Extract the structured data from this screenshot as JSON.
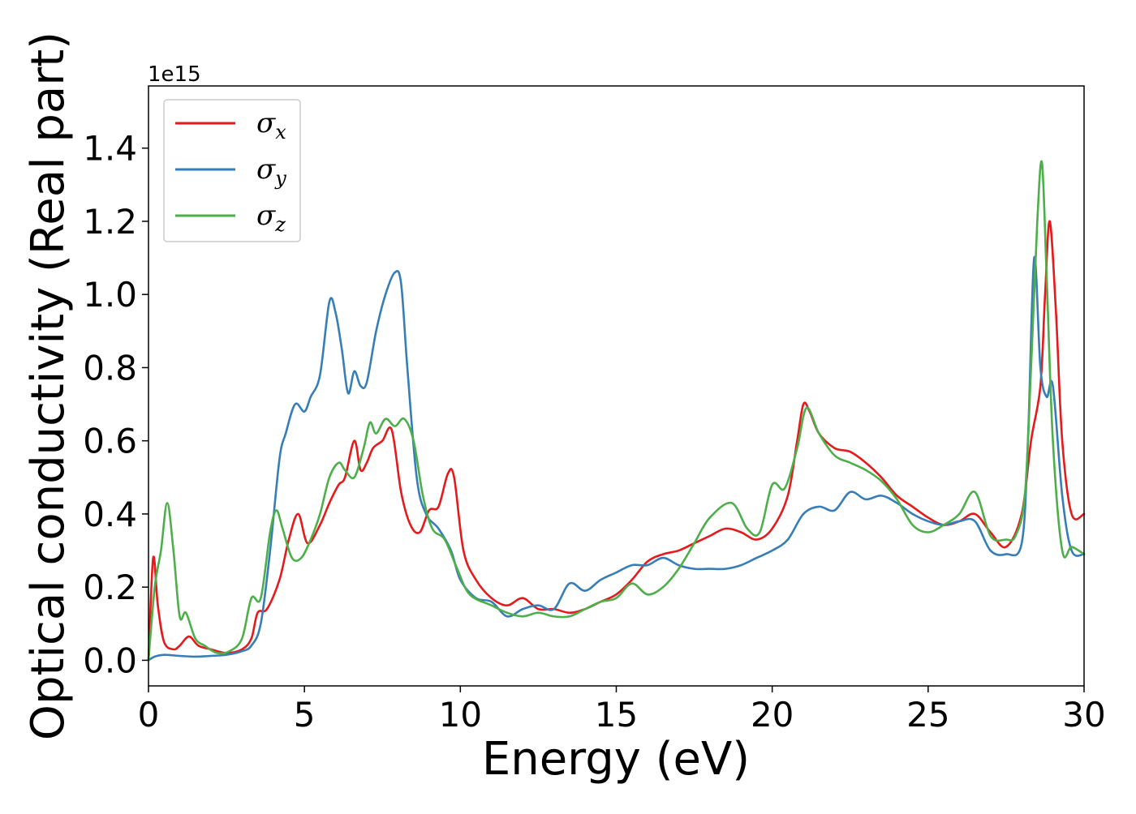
{
  "chart_data": {
    "type": "line",
    "xlabel": "Energy (eV)",
    "ylabel": "Optical conductivity (Real part)",
    "offset_text": "1e15",
    "xlim": [
      0,
      30
    ],
    "ylim": [
      -0.07,
      1.57
    ],
    "x_ticks": [
      0,
      5,
      10,
      15,
      20,
      25,
      30
    ],
    "x_tick_labels": [
      "0",
      "5",
      "10",
      "15",
      "20",
      "25",
      "30"
    ],
    "y_ticks": [
      0.0,
      0.2,
      0.4,
      0.6,
      0.8,
      1.0,
      1.2,
      1.4
    ],
    "y_tick_labels": [
      "0.0",
      "0.2",
      "0.4",
      "0.6",
      "0.8",
      "1.0",
      "1.2",
      "1.4"
    ],
    "grid": false,
    "legend_position": "top-left",
    "series": [
      {
        "name": "σx",
        "symbol": "σ",
        "subscript": "x",
        "color": "#e41a1c",
        "x": [
          0,
          0.15,
          0.3,
          0.5,
          0.8,
          1.0,
          1.3,
          1.6,
          2.0,
          2.5,
          3.0,
          3.3,
          3.5,
          3.8,
          4.2,
          4.5,
          4.8,
          5.1,
          5.5,
          5.8,
          6.1,
          6.3,
          6.6,
          6.8,
          7.0,
          7.2,
          7.5,
          7.8,
          8.1,
          8.4,
          8.7,
          9.0,
          9.3,
          9.6,
          9.8,
          10.1,
          10.5,
          11.0,
          11.5,
          12.0,
          12.5,
          13.0,
          13.5,
          14.0,
          14.5,
          15.0,
          15.5,
          16.0,
          16.5,
          17.0,
          17.5,
          18.0,
          18.5,
          19.0,
          19.5,
          20.0,
          20.5,
          20.8,
          21.0,
          21.2,
          21.5,
          22.0,
          22.5,
          23.0,
          23.5,
          24.0,
          24.5,
          25.0,
          25.5,
          26.0,
          26.5,
          27.0,
          27.5,
          28.0,
          28.3,
          28.6,
          28.75,
          28.9,
          29.1,
          29.3,
          29.6,
          30.0
        ],
        "y": [
          0.0,
          0.28,
          0.15,
          0.05,
          0.03,
          0.04,
          0.065,
          0.04,
          0.03,
          0.02,
          0.03,
          0.06,
          0.13,
          0.14,
          0.22,
          0.33,
          0.4,
          0.32,
          0.37,
          0.43,
          0.48,
          0.5,
          0.6,
          0.52,
          0.54,
          0.58,
          0.6,
          0.63,
          0.46,
          0.37,
          0.35,
          0.41,
          0.42,
          0.51,
          0.5,
          0.3,
          0.22,
          0.17,
          0.15,
          0.17,
          0.14,
          0.14,
          0.13,
          0.14,
          0.16,
          0.18,
          0.22,
          0.27,
          0.29,
          0.3,
          0.32,
          0.34,
          0.36,
          0.35,
          0.33,
          0.36,
          0.45,
          0.6,
          0.7,
          0.68,
          0.62,
          0.58,
          0.57,
          0.54,
          0.5,
          0.45,
          0.42,
          0.39,
          0.37,
          0.38,
          0.4,
          0.35,
          0.31,
          0.4,
          0.6,
          0.75,
          1.0,
          1.2,
          0.95,
          0.6,
          0.4,
          0.4
        ]
      },
      {
        "name": "σy",
        "symbol": "σ",
        "subscript": "y",
        "color": "#377eb8",
        "x": [
          0,
          0.2,
          0.5,
          1.0,
          1.5,
          2.0,
          2.5,
          3.0,
          3.3,
          3.6,
          3.9,
          4.2,
          4.4,
          4.7,
          5.0,
          5.2,
          5.5,
          5.8,
          6.0,
          6.2,
          6.4,
          6.6,
          6.8,
          7.0,
          7.3,
          7.6,
          7.9,
          8.1,
          8.3,
          8.6,
          8.9,
          9.3,
          9.7,
          10.0,
          10.5,
          11.0,
          11.5,
          12.0,
          12.5,
          13.0,
          13.5,
          14.0,
          14.5,
          15.0,
          15.5,
          16.0,
          16.5,
          17.0,
          17.5,
          18.0,
          18.5,
          19.0,
          19.5,
          20.0,
          20.5,
          21.0,
          21.5,
          22.0,
          22.5,
          23.0,
          23.5,
          24.0,
          24.5,
          25.0,
          25.5,
          26.0,
          26.5,
          27.0,
          27.5,
          28.0,
          28.2,
          28.4,
          28.6,
          28.8,
          29.0,
          29.3,
          29.6,
          30.0
        ],
        "y": [
          0.0,
          0.01,
          0.015,
          0.012,
          0.01,
          0.012,
          0.015,
          0.025,
          0.04,
          0.1,
          0.3,
          0.55,
          0.62,
          0.7,
          0.68,
          0.72,
          0.78,
          0.98,
          0.95,
          0.85,
          0.73,
          0.79,
          0.75,
          0.76,
          0.9,
          1.0,
          1.06,
          1.03,
          0.8,
          0.5,
          0.4,
          0.36,
          0.3,
          0.22,
          0.17,
          0.16,
          0.12,
          0.14,
          0.15,
          0.14,
          0.21,
          0.19,
          0.22,
          0.24,
          0.26,
          0.26,
          0.28,
          0.26,
          0.25,
          0.25,
          0.25,
          0.26,
          0.28,
          0.3,
          0.33,
          0.4,
          0.42,
          0.41,
          0.46,
          0.44,
          0.45,
          0.43,
          0.4,
          0.38,
          0.37,
          0.38,
          0.38,
          0.3,
          0.29,
          0.32,
          0.6,
          1.1,
          0.8,
          0.72,
          0.75,
          0.45,
          0.3,
          0.29
        ]
      },
      {
        "name": "σz",
        "symbol": "σ",
        "subscript": "z",
        "color": "#4daf4a",
        "x": [
          0,
          0.2,
          0.4,
          0.6,
          0.8,
          1.0,
          1.2,
          1.5,
          1.8,
          2.2,
          2.6,
          3.0,
          3.3,
          3.6,
          3.9,
          4.1,
          4.3,
          4.6,
          4.9,
          5.2,
          5.5,
          5.8,
          6.1,
          6.3,
          6.6,
          6.9,
          7.1,
          7.3,
          7.6,
          7.9,
          8.2,
          8.5,
          8.8,
          9.1,
          9.5,
          9.9,
          10.3,
          11.0,
          11.5,
          12.0,
          12.5,
          13.0,
          13.5,
          14.0,
          14.5,
          15.0,
          15.5,
          16.0,
          16.5,
          17.0,
          17.5,
          18.0,
          18.7,
          19.2,
          19.6,
          20.0,
          20.4,
          20.8,
          21.1,
          21.5,
          22.0,
          22.5,
          23.0,
          23.5,
          24.0,
          24.5,
          25.0,
          25.5,
          26.0,
          26.5,
          27.0,
          27.5,
          27.8,
          28.1,
          28.3,
          28.5,
          28.65,
          28.8,
          29.0,
          29.3,
          29.6,
          30.0
        ],
        "y": [
          0.0,
          0.2,
          0.3,
          0.43,
          0.3,
          0.12,
          0.13,
          0.06,
          0.04,
          0.02,
          0.025,
          0.06,
          0.17,
          0.17,
          0.35,
          0.41,
          0.36,
          0.28,
          0.28,
          0.33,
          0.4,
          0.5,
          0.54,
          0.52,
          0.5,
          0.58,
          0.65,
          0.62,
          0.66,
          0.64,
          0.66,
          0.6,
          0.45,
          0.36,
          0.33,
          0.25,
          0.18,
          0.15,
          0.13,
          0.12,
          0.13,
          0.12,
          0.12,
          0.14,
          0.16,
          0.17,
          0.21,
          0.18,
          0.2,
          0.25,
          0.32,
          0.39,
          0.43,
          0.36,
          0.35,
          0.48,
          0.47,
          0.58,
          0.69,
          0.62,
          0.56,
          0.54,
          0.52,
          0.49,
          0.44,
          0.37,
          0.35,
          0.37,
          0.4,
          0.46,
          0.34,
          0.33,
          0.34,
          0.45,
          0.8,
          1.2,
          1.36,
          1.05,
          0.6,
          0.3,
          0.31,
          0.29
        ]
      }
    ]
  }
}
